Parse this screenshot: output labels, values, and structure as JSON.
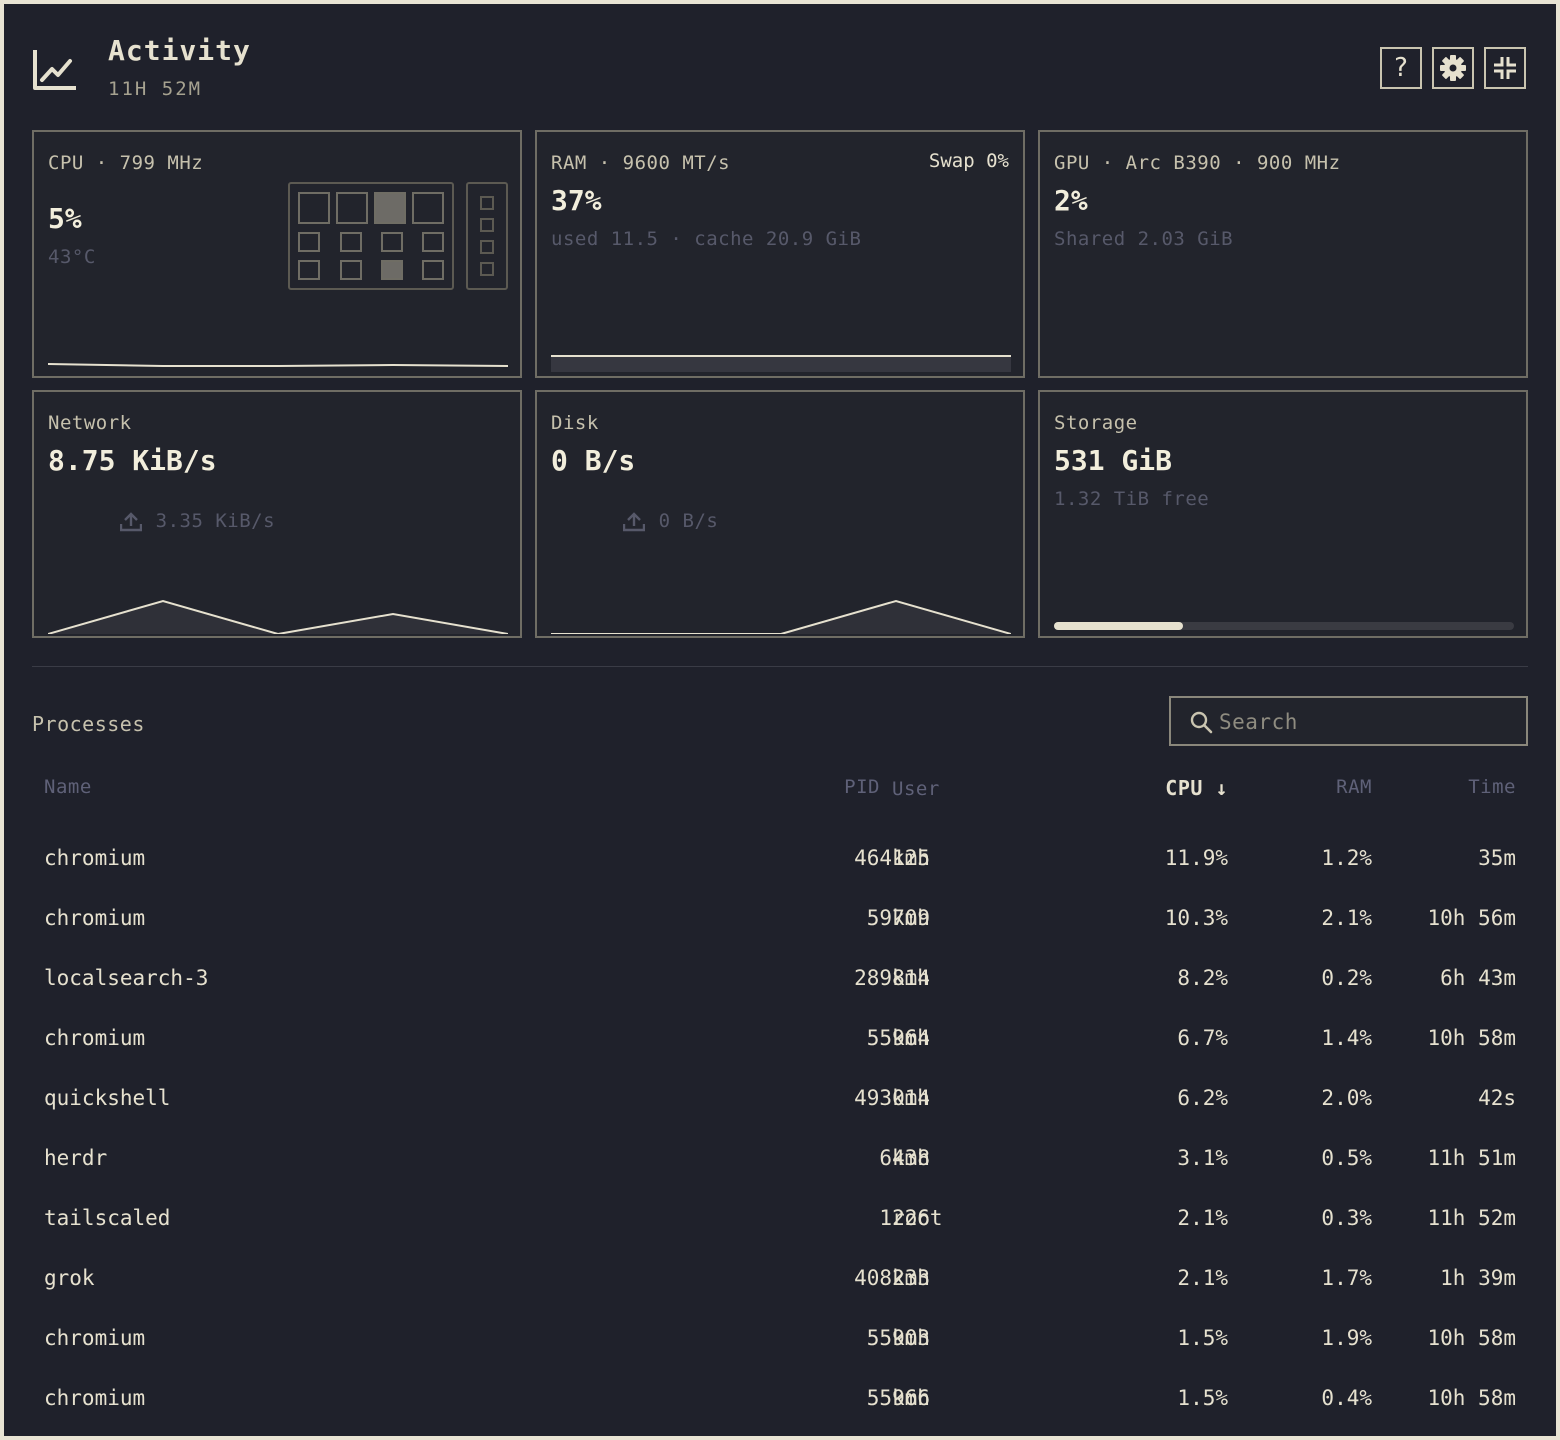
{
  "header": {
    "title": "Activity",
    "uptime": "11H 52M",
    "help_label": "?"
  },
  "cards": {
    "cpu": {
      "title": "CPU · 799 MHz",
      "value": "5%",
      "temp": "43°C",
      "usage": 0.05
    },
    "ram": {
      "title": "RAM · 9600 MT/s",
      "swap": "Swap 0%",
      "value": "37%",
      "detail": "used 11.5 · cache 20.9 GiB"
    },
    "gpu": {
      "title": "GPU · Arc B390 · 900 MHz",
      "value": "2%",
      "detail": "Shared 2.03 GiB"
    },
    "network": {
      "title": "Network",
      "value": "8.75 KiB/s",
      "upload": "3.35 KiB/s"
    },
    "disk": {
      "title": "Disk",
      "value": "0 B/s",
      "upload": "0 B/s"
    },
    "storage": {
      "title": "Storage",
      "value": "531 GiB",
      "free": "1.32 TiB free",
      "used_fraction": 0.28
    }
  },
  "processes": {
    "title": "Processes",
    "search_placeholder": "Search",
    "columns": {
      "name": "Name",
      "pid": "PID",
      "user": "User",
      "cpu": "CPU ↓",
      "ram": "RAM",
      "time": "Time"
    },
    "sort_column": "cpu",
    "rows": [
      {
        "name": "chromium",
        "pid": "464125",
        "user": "kmh",
        "cpu": "11.9%",
        "ram": "1.2%",
        "time": "35m"
      },
      {
        "name": "chromium",
        "pid": "59709",
        "user": "kmh",
        "cpu": "10.3%",
        "ram": "2.1%",
        "time": "10h 56m"
      },
      {
        "name": "localsearch-3",
        "pid": "289814",
        "user": "kmh",
        "cpu": "8.2%",
        "ram": "0.2%",
        "time": "6h 43m"
      },
      {
        "name": "chromium",
        "pid": "55964",
        "user": "kmh",
        "cpu": "6.7%",
        "ram": "1.4%",
        "time": "10h 58m"
      },
      {
        "name": "quickshell",
        "pid": "493014",
        "user": "kmh",
        "cpu": "6.2%",
        "ram": "2.0%",
        "time": "42s"
      },
      {
        "name": "herdr",
        "pid": "6438",
        "user": "kmh",
        "cpu": "3.1%",
        "ram": "0.5%",
        "time": "11h 51m"
      },
      {
        "name": "tailscaled",
        "pid": "1226",
        "user": "root",
        "cpu": "2.1%",
        "ram": "0.3%",
        "time": "11h 52m"
      },
      {
        "name": "grok",
        "pid": "408233",
        "user": "kmh",
        "cpu": "2.1%",
        "ram": "1.7%",
        "time": "1h 39m"
      },
      {
        "name": "chromium",
        "pid": "55903",
        "user": "kmh",
        "cpu": "1.5%",
        "ram": "1.9%",
        "time": "10h 58m"
      },
      {
        "name": "chromium",
        "pid": "55966",
        "user": "kmh",
        "cpu": "1.5%",
        "ram": "0.4%",
        "time": "10h 58m"
      }
    ]
  },
  "colors": {
    "background": "#1f212b",
    "frame": "#e8e4d4",
    "text": "#e6e1cf",
    "muted": "#57596a",
    "accent": "#e6e1cf"
  },
  "icons": {
    "app": "line-chart-icon",
    "help": "question-icon",
    "settings": "gear-icon",
    "collapse": "collapse-icon",
    "upload": "upload-icon",
    "search": "search-icon"
  }
}
